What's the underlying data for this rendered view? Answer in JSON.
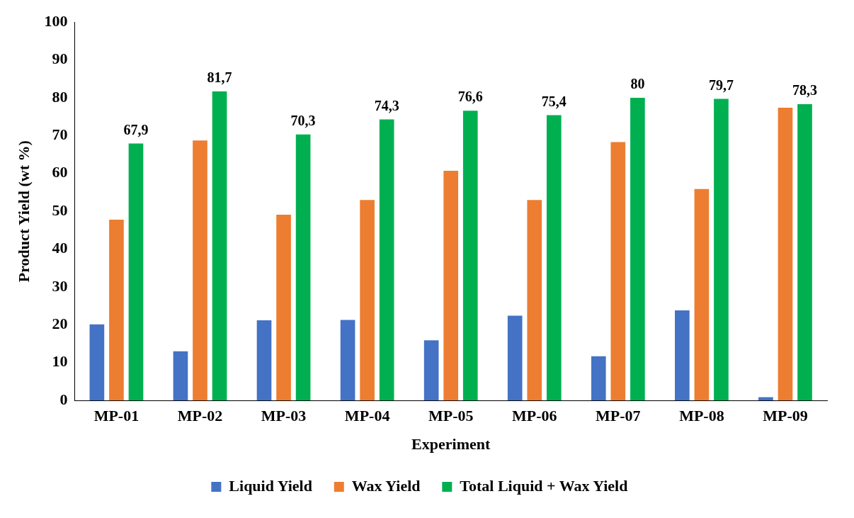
{
  "chart_data": {
    "type": "bar",
    "xlabel": "Experiment",
    "ylabel": "Product Yield (wt %)",
    "categories": [
      "MP-01",
      "MP-02",
      "MP-03",
      "MP-04",
      "MP-05",
      "MP-06",
      "MP-07",
      "MP-08",
      "MP-09"
    ],
    "series": [
      {
        "name": "Liquid Yield",
        "color": "#4472c4",
        "values": [
          20.1,
          13.0,
          21.2,
          21.3,
          15.9,
          22.4,
          11.7,
          23.8,
          0.9
        ]
      },
      {
        "name": "Wax Yield",
        "color": "#ed7d31",
        "values": [
          47.8,
          68.7,
          49.1,
          53.0,
          60.7,
          53.0,
          68.3,
          55.9,
          77.4
        ]
      },
      {
        "name": "Total Liquid + Wax Yield",
        "color": "#00b050",
        "values": [
          67.9,
          81.7,
          70.3,
          74.3,
          76.6,
          75.4,
          80,
          79.7,
          78.3
        ],
        "value_labels": [
          "67,9",
          "81,7",
          "70,3",
          "74,3",
          "76,6",
          "75,4",
          "80",
          "79,7",
          "78,3"
        ]
      }
    ],
    "ylim": [
      0,
      100
    ],
    "yticks": [
      0,
      10,
      20,
      30,
      40,
      50,
      60,
      70,
      80,
      90,
      100
    ],
    "grid": false,
    "legend": "bottom"
  }
}
